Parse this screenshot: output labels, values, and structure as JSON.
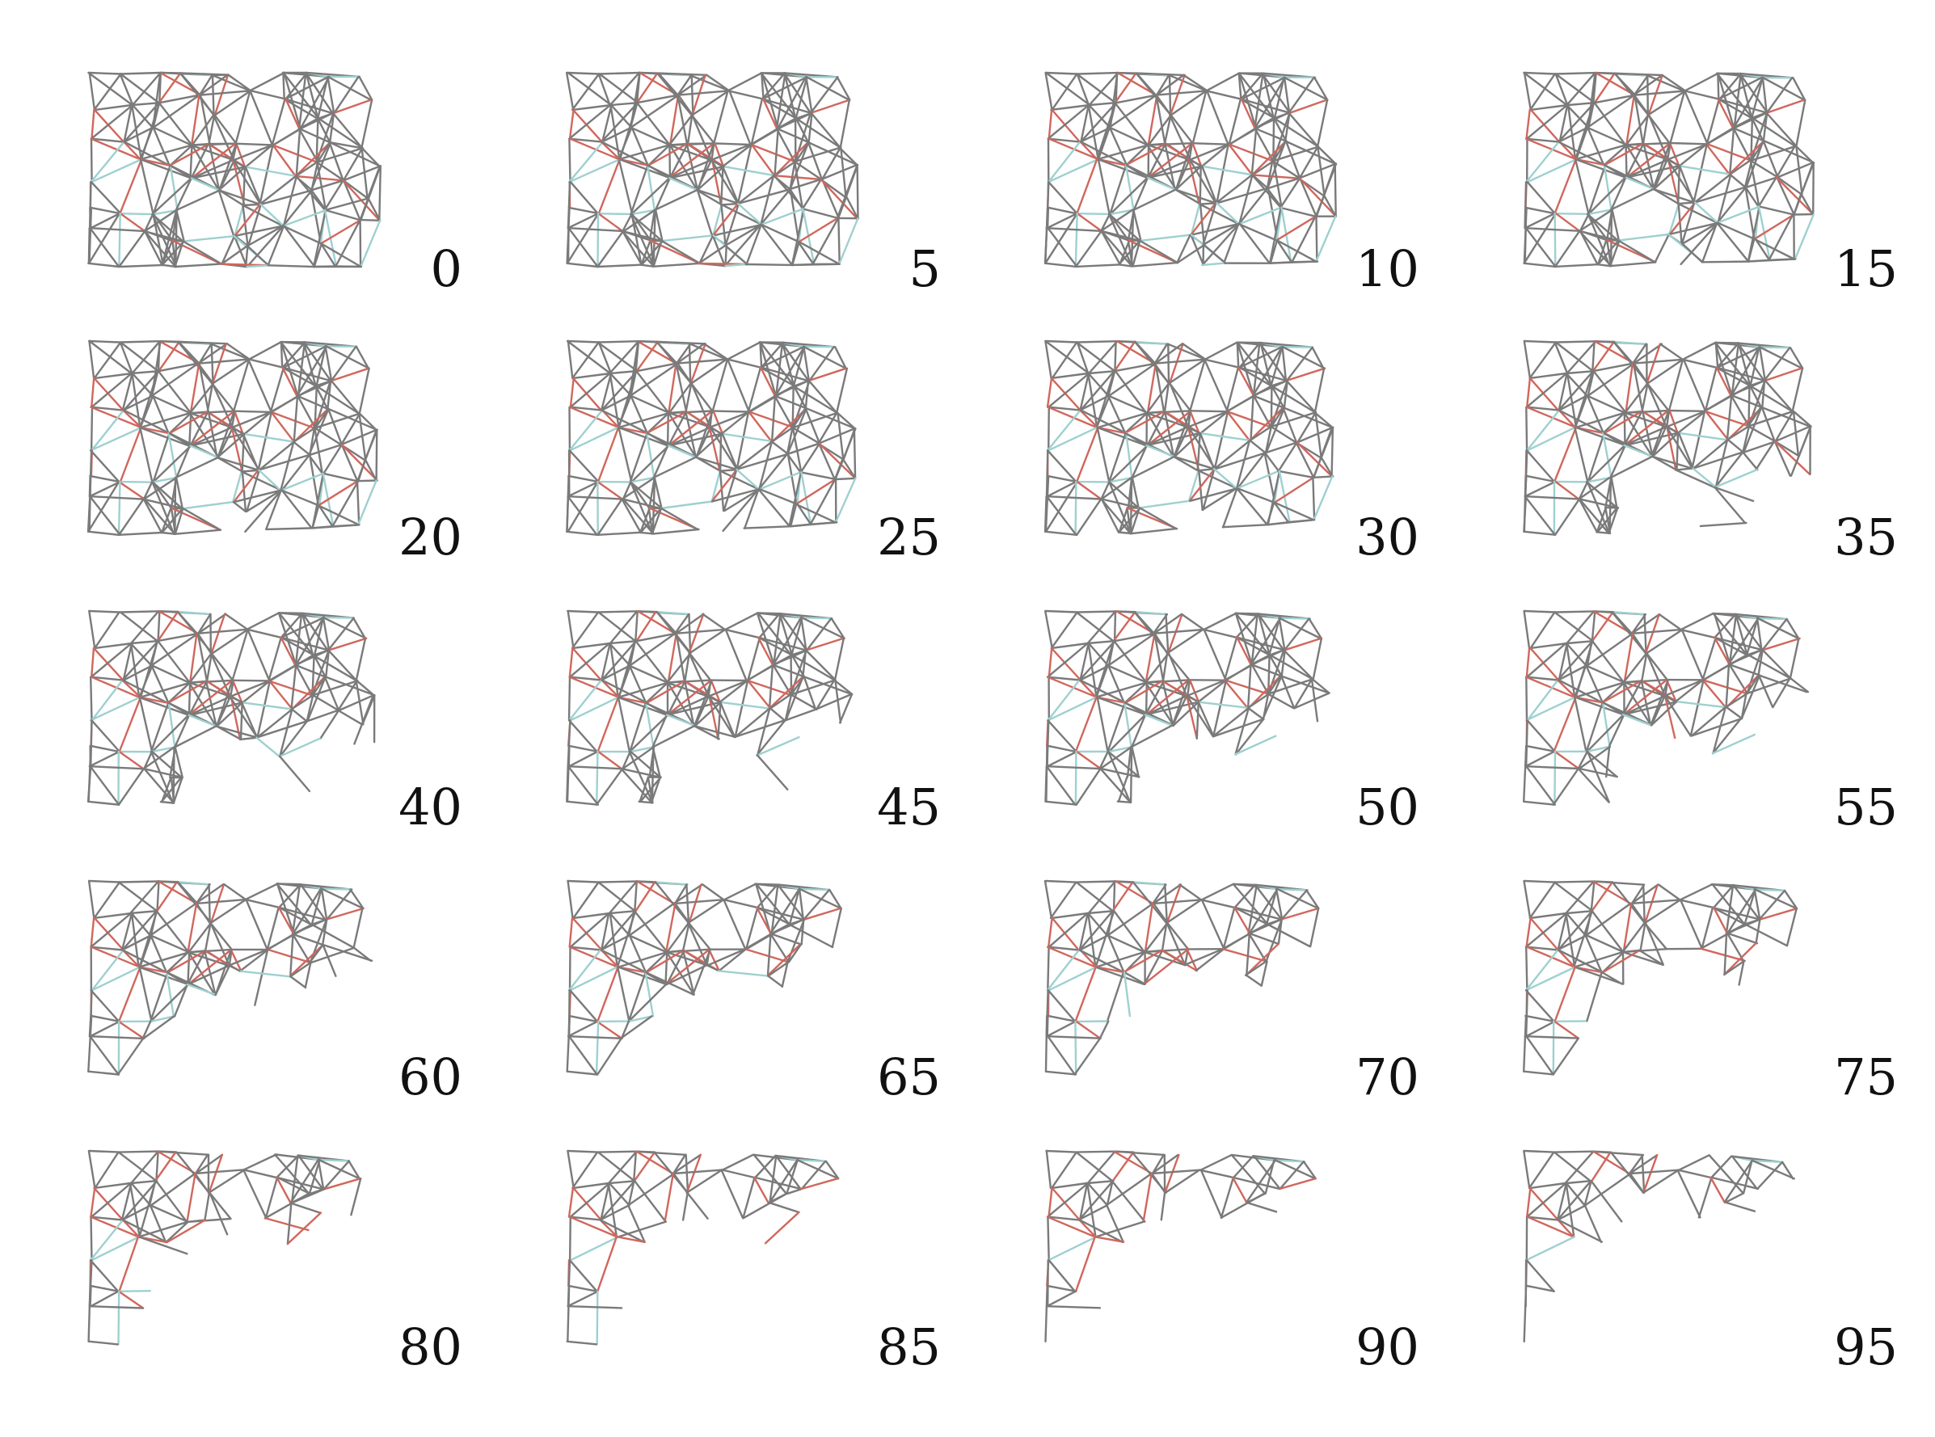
{
  "figure": {
    "colors": {
      "edge": "#7a7a7a",
      "edge_stressed": "#d0675d",
      "edge_relaxed": "#9fd0d0",
      "background": "#ffffff"
    },
    "panels": [
      {
        "label": "0",
        "removed_fraction": 0.0
      },
      {
        "label": "5",
        "removed_fraction": 0.05
      },
      {
        "label": "10",
        "removed_fraction": 0.1
      },
      {
        "label": "15",
        "removed_fraction": 0.15
      },
      {
        "label": "20",
        "removed_fraction": 0.2
      },
      {
        "label": "25",
        "removed_fraction": 0.25
      },
      {
        "label": "30",
        "removed_fraction": 0.3
      },
      {
        "label": "35",
        "removed_fraction": 0.35
      },
      {
        "label": "40",
        "removed_fraction": 0.4
      },
      {
        "label": "45",
        "removed_fraction": 0.45
      },
      {
        "label": "50",
        "removed_fraction": 0.5
      },
      {
        "label": "55",
        "removed_fraction": 0.55
      },
      {
        "label": "60",
        "removed_fraction": 0.6
      },
      {
        "label": "65",
        "removed_fraction": 0.65
      },
      {
        "label": "70",
        "removed_fraction": 0.7
      },
      {
        "label": "75",
        "removed_fraction": 0.75
      },
      {
        "label": "80",
        "removed_fraction": 0.8
      },
      {
        "label": "85",
        "removed_fraction": 0.85
      },
      {
        "label": "90",
        "removed_fraction": 0.9
      },
      {
        "label": "95",
        "removed_fraction": 0.95
      }
    ]
  }
}
